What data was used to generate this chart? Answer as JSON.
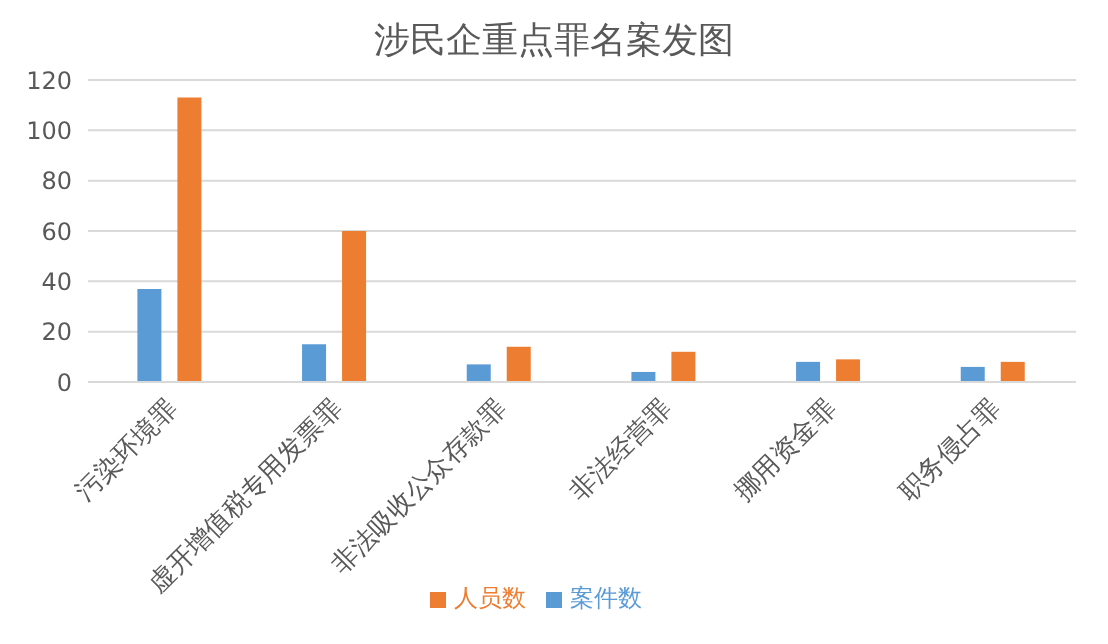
{
  "chart_data": {
    "type": "bar",
    "title": "涉民企重点罪名案发图",
    "categories": [
      "污染环境罪",
      "虚开增值税专用发票罪",
      "非法吸收公众存款罪",
      "非法经营罪",
      "挪用资金罪",
      "职务侵占罪"
    ],
    "series": [
      {
        "name": "案件数",
        "color": "#5b9bd5",
        "values": [
          37,
          15,
          7,
          4,
          8,
          6
        ]
      },
      {
        "name": "人员数",
        "color": "#ed7d31",
        "values": [
          113,
          60,
          14,
          12,
          9,
          8
        ]
      }
    ],
    "ylim": [
      0,
      120
    ],
    "yticks": [
      0,
      20,
      40,
      60,
      80,
      100,
      120
    ],
    "grid": "y",
    "legend": "bottom"
  }
}
